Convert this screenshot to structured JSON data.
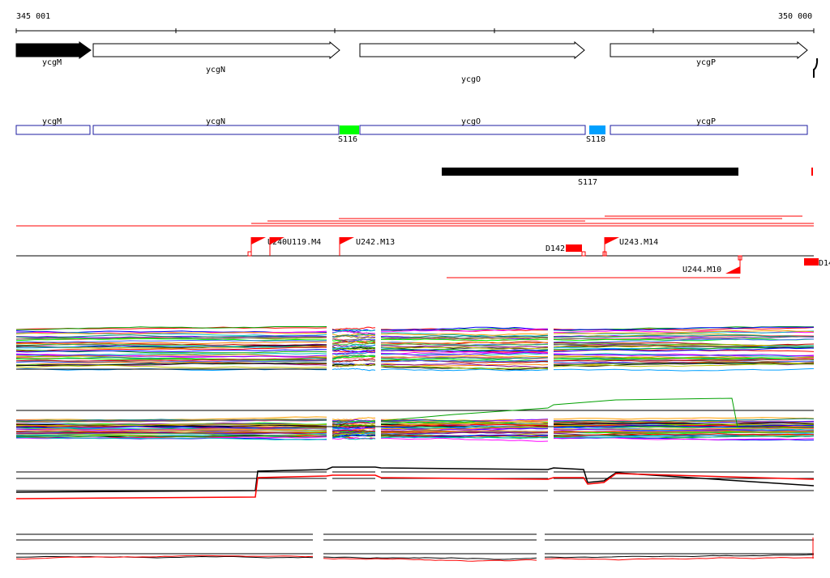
{
  "ruler": {
    "start_label": "345 001",
    "end_label": "350 000"
  },
  "colors": {
    "black": "#000000",
    "red": "#ff0000",
    "segment_outline": "#1e1ea0",
    "green": "#00ff00",
    "blue": "#00a0ff",
    "grey": "#808080"
  },
  "genes": [
    {
      "name": "ycgM",
      "filled": true
    },
    {
      "name": "ycgN",
      "filled": false
    },
    {
      "name": "ycgO",
      "filled": false
    },
    {
      "name": "ycgP",
      "filled": false
    }
  ],
  "segments": [
    {
      "name": "ycgM"
    },
    {
      "name": "ycgN"
    },
    {
      "name": "ycgO"
    },
    {
      "name": "ycgP"
    }
  ],
  "segment_marks": [
    {
      "label": "S116",
      "color_key": "green"
    },
    {
      "label": "S118",
      "color_key": "blue"
    }
  ],
  "black_bar": {
    "label": "S117"
  },
  "markers": [
    {
      "label": "U240",
      "kind": "flag"
    },
    {
      "label": "U119.M4",
      "kind": "flag"
    },
    {
      "label": "U242.M13",
      "kind": "flag"
    },
    {
      "label": "D142",
      "kind": "box"
    },
    {
      "label": "U243.M14",
      "kind": "flag"
    },
    {
      "label": "U244.M10",
      "kind": "flag-below"
    },
    {
      "label": "D14",
      "kind": "box-edge"
    }
  ]
}
